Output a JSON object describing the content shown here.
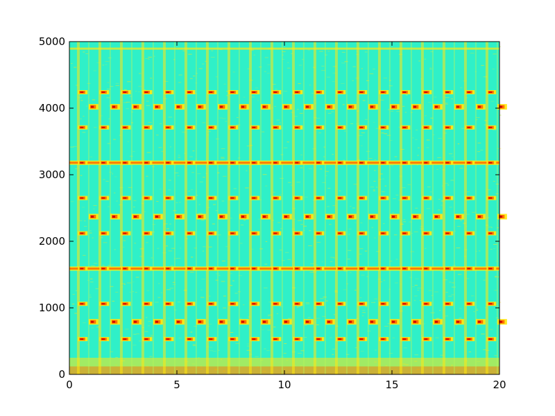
{
  "chart_data": {
    "type": "heatmap",
    "title": "",
    "xlabel": "",
    "ylabel": "",
    "xlim": [
      0,
      20
    ],
    "ylim": [
      0,
      5000
    ],
    "grid": false,
    "legend": "none",
    "colormap": "jet",
    "colors": {
      "background": "#2ff0c8",
      "mid": "#b8f55a",
      "high": "#ffe812",
      "peak": "#ff6a00",
      "max": "#cc0000"
    },
    "x_ticks": [
      {
        "value": 0,
        "label": "0"
      },
      {
        "value": 5,
        "label": "5"
      },
      {
        "value": 10,
        "label": "10"
      },
      {
        "value": 15,
        "label": "15"
      },
      {
        "value": 20,
        "label": "20"
      }
    ],
    "y_ticks": [
      {
        "value": 0,
        "label": "0"
      },
      {
        "value": 1000,
        "label": "1000"
      },
      {
        "value": 2000,
        "label": "2000"
      },
      {
        "value": 3000,
        "label": "3000"
      },
      {
        "value": 4000,
        "label": "4000"
      },
      {
        "value": 5000,
        "label": "5000"
      }
    ],
    "harmonic_frequencies": [
      530,
      1060,
      1590,
      2120,
      2650,
      3180,
      3710,
      4240
    ],
    "alternate_frequencies": [
      790,
      2370,
      4020
    ],
    "pulse_period": 1.0,
    "pulse_start": 0.4,
    "continuous_bands": [
      1590,
      3180
    ]
  }
}
